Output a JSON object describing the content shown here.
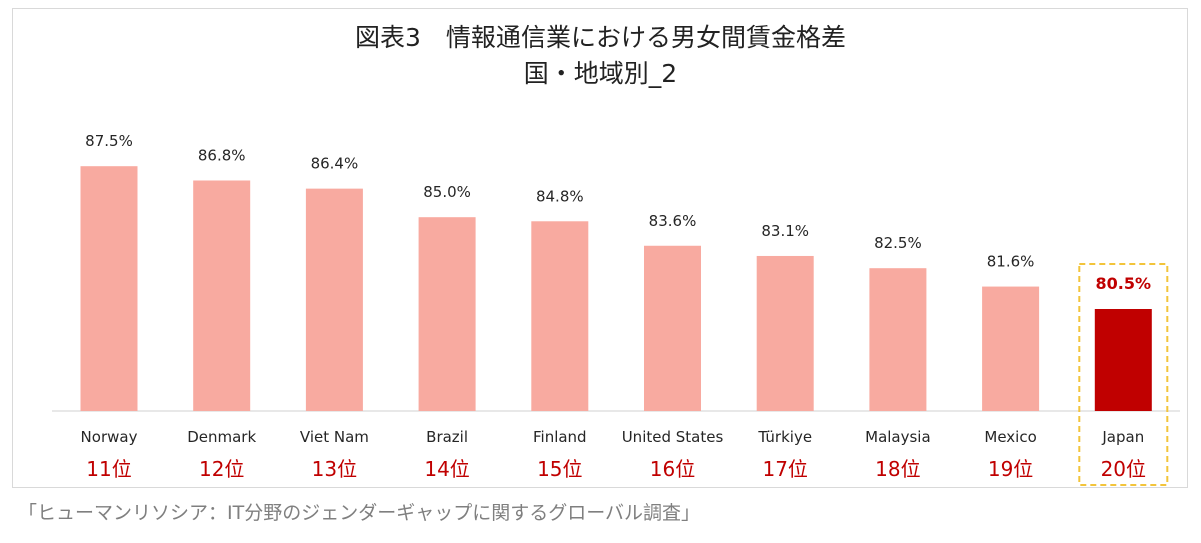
{
  "chart_data": {
    "type": "bar",
    "title": "図表3　情報通信業における男女間賃金格差",
    "subtitle": "国・地域別_2",
    "categories": [
      "Norway",
      "Denmark",
      "Viet Nam",
      "Brazil",
      "Finland",
      "United States",
      "Türkiye",
      "Malaysia",
      "Mexico",
      "Japan"
    ],
    "ranks": [
      "11位",
      "12位",
      "13位",
      "14位",
      "15位",
      "16位",
      "17位",
      "18位",
      "19位",
      "20位"
    ],
    "values": [
      87.5,
      86.8,
      86.4,
      85.0,
      84.8,
      83.6,
      83.1,
      82.5,
      81.6,
      80.5
    ],
    "value_labels": [
      "87.5%",
      "86.8%",
      "86.4%",
      "85.0%",
      "84.8%",
      "83.6%",
      "83.1%",
      "82.5%",
      "81.6%",
      "80.5%"
    ],
    "highlight_index": 9,
    "colors": {
      "bar": "#f8aaa0",
      "highlight": "#c00000",
      "highlight_box": "#f2c43b",
      "rank": "#c00000"
    },
    "grid": false
  },
  "source": "「ヒューマンリソシア：IT分野のジェンダーギャップに関するグローバル調査」"
}
